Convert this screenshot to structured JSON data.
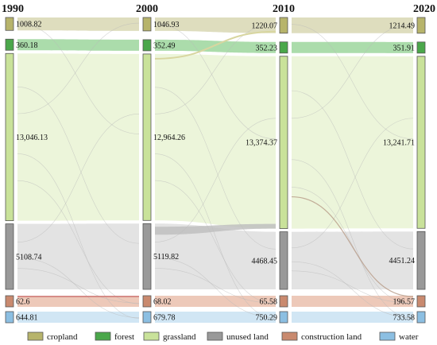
{
  "years": [
    "1990",
    "2000",
    "2010",
    "2020"
  ],
  "categories": [
    {
      "key": "cropland",
      "label": "cropland",
      "color": "#b7b46b",
      "flow": "#d3d2a8"
    },
    {
      "key": "forest",
      "label": "forest",
      "color": "#4aa74a",
      "flow": "#8fd08f"
    },
    {
      "key": "grassland",
      "label": "grassland",
      "color": "#c9e29a",
      "flow": "#e6f2cd"
    },
    {
      "key": "unused",
      "label": "unused land",
      "color": "#999999",
      "flow": "#dadada"
    },
    {
      "key": "construction",
      "label": "construction land",
      "color": "#c98a6f",
      "flow": "#e7b7a2"
    },
    {
      "key": "water",
      "label": "water",
      "color": "#8cbfe2",
      "flow": "#c2ddf0"
    }
  ],
  "chart_data": {
    "type": "sankey",
    "stages": [
      "1990",
      "2000",
      "2010",
      "2020"
    ],
    "values": {
      "1990": {
        "cropland": "1008.82",
        "forest": "360.18",
        "grassland": "13,046.13",
        "unused": "5108.74",
        "construction": "62.6",
        "water": "644.81"
      },
      "2000": {
        "cropland": "1046.93",
        "forest": "352.49",
        "grassland": "12,964.26",
        "unused": "5119.82",
        "construction": "68.02",
        "water": "679.78"
      },
      "2010": {
        "cropland": "1220.07",
        "forest": "352.23",
        "grassland": "13,374.37",
        "unused": "4468.45",
        "construction": "65.58",
        "water": "750.29"
      },
      "2020": {
        "cropland": "1214.49",
        "forest": "351.91",
        "grassland": "13,241.71",
        "unused": "4451.24",
        "construction": "196.57",
        "water": "733.58"
      }
    }
  }
}
